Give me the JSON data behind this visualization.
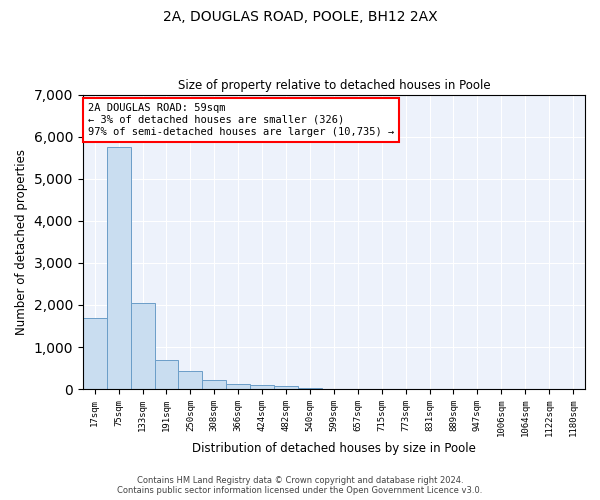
{
  "title1": "2A, DOUGLAS ROAD, POOLE, BH12 2AX",
  "title2": "Size of property relative to detached houses in Poole",
  "xlabel": "Distribution of detached houses by size in Poole",
  "ylabel": "Number of detached properties",
  "bar_color": "#c9ddf0",
  "bar_edge_color": "#6b9dc8",
  "background_color": "#edf2fb",
  "categories": [
    "17sqm",
    "75sqm",
    "133sqm",
    "191sqm",
    "250sqm",
    "308sqm",
    "366sqm",
    "424sqm",
    "482sqm",
    "540sqm",
    "599sqm",
    "657sqm",
    "715sqm",
    "773sqm",
    "831sqm",
    "889sqm",
    "947sqm",
    "1006sqm",
    "1064sqm",
    "1122sqm",
    "1180sqm"
  ],
  "values": [
    1700,
    5750,
    2050,
    700,
    420,
    220,
    120,
    100,
    70,
    30,
    8,
    5,
    4,
    3,
    2,
    2,
    2,
    2,
    2,
    2,
    2
  ],
  "annotation_text": "2A DOUGLAS ROAD: 59sqm\n← 3% of detached houses are smaller (326)\n97% of semi-detached houses are larger (10,735) →",
  "annotation_box_color": "white",
  "annotation_box_edge": "red",
  "ylim": [
    0,
    7000
  ],
  "yticks": [
    0,
    1000,
    2000,
    3000,
    4000,
    5000,
    6000,
    7000
  ],
  "footer1": "Contains HM Land Registry data © Crown copyright and database right 2024.",
  "footer2": "Contains public sector information licensed under the Open Government Licence v3.0."
}
